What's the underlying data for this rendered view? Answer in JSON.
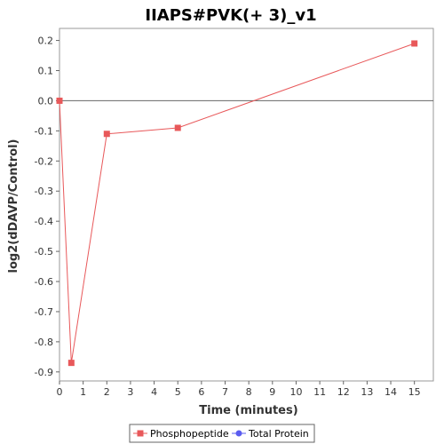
{
  "chart_data": {
    "type": "line",
    "title": "IIAPS#PVK(+ 3)_v1",
    "xlabel": "Time (minutes)",
    "ylabel": "log2(dDAVP/Control)",
    "xlim": [
      0,
      15.8
    ],
    "ylim": [
      -0.93,
      0.24
    ],
    "x_ticks": [
      0,
      1,
      2,
      3,
      4,
      5,
      6,
      7,
      8,
      9,
      10,
      11,
      12,
      13,
      14,
      15
    ],
    "y_ticks": [
      0.2,
      0.1,
      0.0,
      -0.1,
      -0.2,
      -0.3,
      -0.4,
      -0.5,
      -0.6,
      -0.7,
      -0.8,
      -0.9
    ],
    "y_tick_labels": [
      "0.2",
      "0.1",
      "0.0",
      "-0.1",
      "-0.2",
      "-0.3",
      "-0.4",
      "-0.5",
      "-0.6",
      "-0.7",
      "-0.8",
      "-0.9"
    ],
    "zero_line": true,
    "grid": false,
    "legend_position": "bottom",
    "series": [
      {
        "name": "Phosphopeptide",
        "color": "#e8585a",
        "marker": "square",
        "x": [
          0,
          0.5,
          2,
          5,
          15
        ],
        "y": [
          0.0,
          -0.87,
          -0.11,
          -0.09,
          0.19
        ]
      },
      {
        "name": "Total Protein",
        "color": "#5a5cf0",
        "marker": "circle",
        "x": [],
        "y": []
      }
    ]
  }
}
